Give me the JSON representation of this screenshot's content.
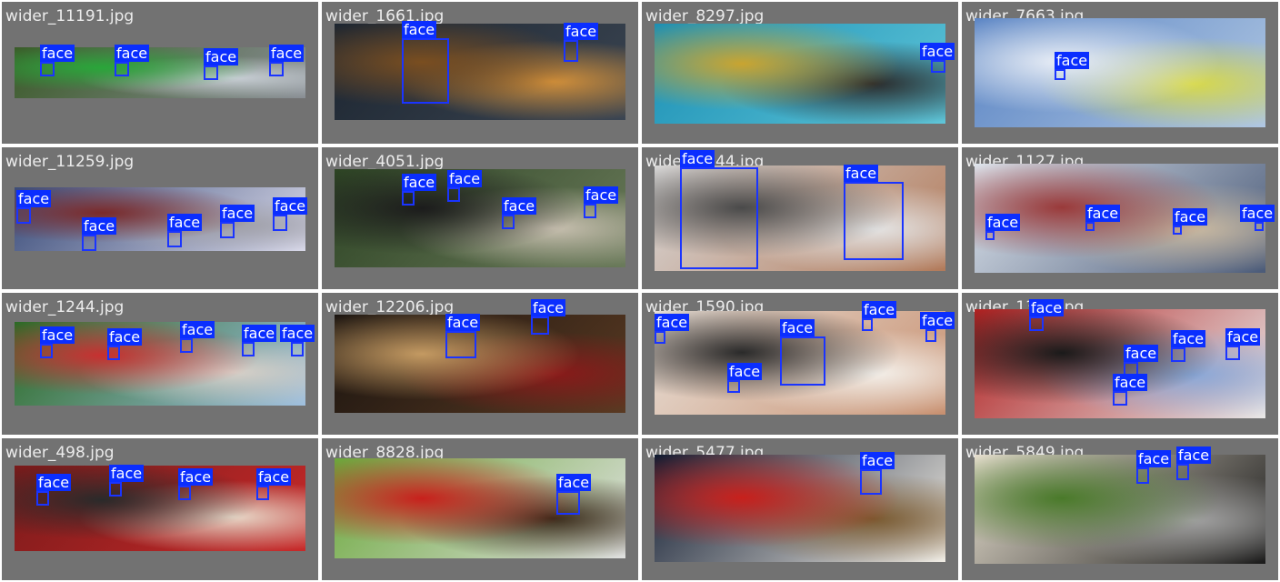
{
  "label_text": "face",
  "tiles": [
    {
      "filename": "wider_11191.jpg",
      "colors": [
        "#3a5a28",
        "#8a8f95",
        "#2aa63a",
        "#c9cfd6"
      ],
      "faces": [
        [
          44,
          68,
          16,
          16
        ],
        [
          126,
          68,
          16,
          16
        ],
        [
          224,
          72,
          16,
          16
        ],
        [
          296,
          68,
          16,
          16
        ]
      ]
    },
    {
      "filename": "wider_1661.jpg",
      "colors": [
        "#1c2530",
        "#3b4552",
        "#7a4e20",
        "#d18f3a"
      ],
      "faces": [
        [
          442,
          42,
          52,
          72
        ],
        [
          620,
          44,
          16,
          24
        ]
      ]
    },
    {
      "filename": "wider_8297.jpg",
      "colors": [
        "#1b8fb4",
        "#5fc5d8",
        "#c9a430",
        "#2b2b2b"
      ],
      "faces": [
        [
          1024,
          66,
          16,
          14
        ]
      ]
    },
    {
      "filename": "wider_7663.jpg",
      "colors": [
        "#5a84c4",
        "#b0c7e2",
        "#e9eef6",
        "#d8d94a"
      ],
      "faces": [
        [
          1160,
          76,
          12,
          12
        ]
      ]
    },
    {
      "filename": "wider_11259.jpg",
      "colors": [
        "#3a4c7a",
        "#d8d8e8",
        "#7a2a2a",
        "#a0a0a8"
      ],
      "faces": [
        [
          18,
          228,
          16,
          18
        ],
        [
          90,
          258,
          16,
          18
        ],
        [
          184,
          254,
          16,
          18
        ],
        [
          242,
          244,
          16,
          18
        ],
        [
          300,
          236,
          16,
          18
        ]
      ]
    },
    {
      "filename": "wider_4051.jpg",
      "colors": [
        "#2d4424",
        "#6a7a5a",
        "#1c1c1c",
        "#c8c0b0"
      ],
      "faces": [
        [
          442,
          210,
          14,
          16
        ],
        [
          492,
          206,
          14,
          16
        ],
        [
          552,
          236,
          14,
          16
        ],
        [
          642,
          224,
          14,
          16
        ]
      ]
    },
    {
      "filename": "wider_1544.jpg",
      "colors": [
        "#d9d9d9",
        "#b27a5a",
        "#4a4a4a",
        "#e4e4e4"
      ],
      "faces": [
        [
          748,
          184,
          86,
          112
        ],
        [
          928,
          200,
          66,
          86
        ]
      ]
    },
    {
      "filename": "wider_1127.jpg",
      "colors": [
        "#dfe6ee",
        "#4a5a78",
        "#9a3a3a",
        "#c8b8a0"
      ],
      "faces": [
        [
          1084,
          254,
          10,
          10
        ],
        [
          1194,
          244,
          10,
          10
        ],
        [
          1290,
          248,
          10,
          10
        ],
        [
          1380,
          244,
          10,
          10
        ]
      ]
    },
    {
      "filename": "wider_1244.jpg",
      "colors": [
        "#2a6a24",
        "#a0c0e0",
        "#c83030",
        "#d8d0c8"
      ],
      "faces": [
        [
          44,
          378,
          14,
          16
        ],
        [
          118,
          380,
          14,
          16
        ],
        [
          198,
          372,
          14,
          16
        ],
        [
          266,
          376,
          14,
          16
        ],
        [
          320,
          376,
          14,
          16
        ]
      ]
    },
    {
      "filename": "wider_12206.jpg",
      "colors": [
        "#1a1410",
        "#5a3a22",
        "#c49a62",
        "#8a1a1a"
      ],
      "faces": [
        [
          490,
          364,
          34,
          30
        ],
        [
          584,
          348,
          20,
          20
        ]
      ]
    },
    {
      "filename": "wider_1590.jpg",
      "colors": [
        "#e8e0d8",
        "#c89070",
        "#2a2a2a",
        "#f4f0ea"
      ],
      "faces": [
        [
          720,
          364,
          12,
          14
        ],
        [
          858,
          370,
          50,
          54
        ],
        [
          800,
          418,
          14,
          14
        ],
        [
          948,
          350,
          12,
          14
        ],
        [
          1018,
          362,
          12,
          14
        ]
      ]
    },
    {
      "filename": "wider_1390.jpg",
      "colors": [
        "#b02020",
        "#e8e8e8",
        "#1a1a1a",
        "#8aa8d8"
      ],
      "faces": [
        [
          1132,
          348,
          16,
          16
        ],
        [
          1236,
          398,
          16,
          16
        ],
        [
          1288,
          382,
          16,
          16
        ],
        [
          1348,
          380,
          16,
          16
        ],
        [
          1224,
          430,
          16,
          16
        ]
      ]
    },
    {
      "filename": "wider_498.jpg",
      "colors": [
        "#7a1a1a",
        "#c82a2a",
        "#2a2a2a",
        "#e8d8c8"
      ],
      "faces": [
        [
          40,
          540,
          14,
          16
        ],
        [
          120,
          530,
          14,
          16
        ],
        [
          196,
          534,
          14,
          16
        ],
        [
          282,
          534,
          14,
          16
        ]
      ]
    },
    {
      "filename": "wider_8828.jpg",
      "colors": [
        "#6aa83a",
        "#e0e0e0",
        "#c8201c",
        "#3a2a1a"
      ],
      "faces": [
        [
          612,
          540,
          26,
          26
        ]
      ]
    },
    {
      "filename": "wider_5477.jpg",
      "colors": [
        "#0e1a30",
        "#f0ece4",
        "#c8201c",
        "#7a5a30"
      ],
      "faces": [
        [
          946,
          516,
          24,
          28
        ]
      ]
    },
    {
      "filename": "wider_5849.jpg",
      "colors": [
        "#e8e0d0",
        "#1a1a1a",
        "#4a7a2a",
        "#a0a0a0"
      ],
      "faces": [
        [
          1250,
          514,
          14,
          18
        ],
        [
          1294,
          510,
          14,
          18
        ]
      ]
    }
  ]
}
